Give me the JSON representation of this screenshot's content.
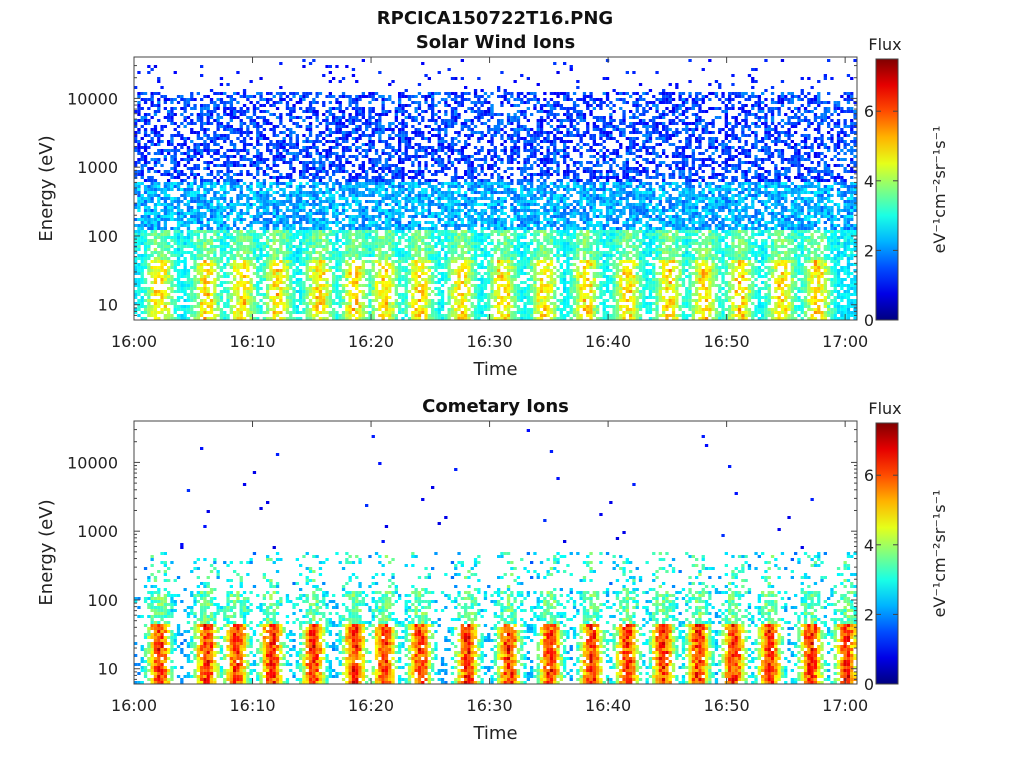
{
  "figure_title": "RPCICA150722T16.PNG",
  "chart_data": [
    {
      "type": "heatmap",
      "title": "Solar Wind Ions",
      "xlabel": "Time",
      "ylabel": "Energy (eV)",
      "x_ticks": [
        "16:00",
        "16:10",
        "16:20",
        "16:30",
        "16:40",
        "16:50",
        "17:00"
      ],
      "x_range_minutes": [
        0,
        61
      ],
      "y_scale": "log",
      "y_ticks": [
        "10",
        "100",
        "1000",
        "10000"
      ],
      "y_range": [
        6,
        40000
      ],
      "colorbar": {
        "label": "Flux",
        "unit_label": "eV⁻¹cm⁻²sr⁻¹s⁻¹",
        "ticks": [
          "0",
          "2",
          "4",
          "6"
        ],
        "range": [
          0,
          7.5
        ],
        "colormap": "jet"
      },
      "bursts_minutes": [
        2,
        6,
        9,
        12,
        15.5,
        18.5,
        21,
        24,
        27.5,
        31,
        34.5,
        38,
        41.5,
        45,
        48,
        51,
        54.5,
        57.5
      ],
      "peak_flux": 5.5,
      "background": "broad"
    },
    {
      "type": "heatmap",
      "title": "Cometary Ions",
      "xlabel": "Time",
      "ylabel": "Energy (eV)",
      "x_ticks": [
        "16:00",
        "16:10",
        "16:20",
        "16:30",
        "16:40",
        "16:50",
        "17:00"
      ],
      "x_range_minutes": [
        0,
        61
      ],
      "y_scale": "log",
      "y_ticks": [
        "10",
        "100",
        "1000",
        "10000"
      ],
      "y_range": [
        6,
        40000
      ],
      "colorbar": {
        "label": "Flux",
        "unit_label": "eV⁻¹cm⁻²sr⁻¹s⁻¹",
        "ticks": [
          "0",
          "2",
          "4",
          "6"
        ],
        "range": [
          0,
          7.5
        ],
        "colormap": "jet"
      },
      "bursts_minutes": [
        2,
        6,
        8.5,
        11.5,
        15,
        18.5,
        21,
        24,
        28,
        31.5,
        35,
        38.5,
        41.5,
        44.5,
        47.5,
        50.5,
        53.5,
        57,
        60
      ],
      "peak_flux": 7,
      "background": "sparse"
    }
  ]
}
